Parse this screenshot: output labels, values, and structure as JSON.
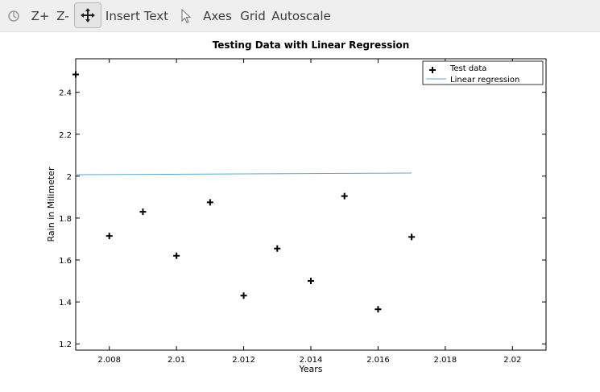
{
  "toolbar": {
    "rotate_icon": "rotate-icon",
    "zoom_in_label": "Z+",
    "zoom_out_label": "Z-",
    "pan_icon": "pan-move-icon",
    "insert_text_label": "Insert Text",
    "select_icon": "pointer-icon",
    "axes_label": "Axes",
    "grid_label": "Grid",
    "autoscale_label": "Autoscale"
  },
  "chart_data": {
    "type": "scatter",
    "title": "Testing Data with Linear Regression",
    "xlabel": "Years",
    "ylabel": "Rain in Milimeter",
    "xlim": [
      2007,
      2021
    ],
    "ylim": [
      1.17,
      2.56
    ],
    "xticks": [
      2008,
      2010,
      2012,
      2014,
      2016,
      2018,
      2020
    ],
    "xtick_labels": [
      "2.008",
      "2.01",
      "2.012",
      "2.014",
      "2.016",
      "2.018",
      "2.02"
    ],
    "yticks": [
      1.2,
      1.4,
      1.6,
      1.8,
      2.0,
      2.2,
      2.4
    ],
    "ytick_labels": [
      "1.2",
      "1.4",
      "1.6",
      "1.8",
      "2",
      "2.2",
      "2.4"
    ],
    "grid": false,
    "legend_position": "top-right",
    "series": [
      {
        "name": "Test data",
        "style": "markers",
        "marker": "+",
        "color": "#000000",
        "x": [
          2007,
          2008,
          2009,
          2010,
          2011,
          2012,
          2013,
          2014,
          2015,
          2016,
          2017
        ],
        "y": [
          2.485,
          1.715,
          1.83,
          1.62,
          1.875,
          1.43,
          1.655,
          1.5,
          1.905,
          1.365,
          1.71
        ]
      },
      {
        "name": "Linear regression",
        "style": "line",
        "color": "#5aa8d6",
        "x": [
          2007,
          2017
        ],
        "y": [
          2.007,
          2.015
        ]
      }
    ]
  }
}
